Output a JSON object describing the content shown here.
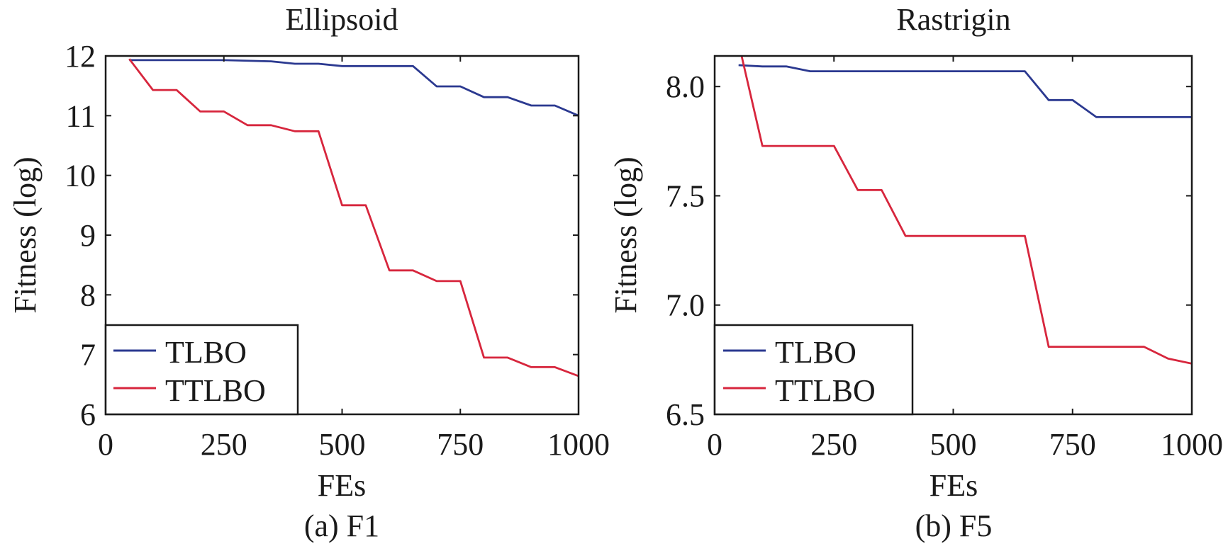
{
  "chart_data": [
    {
      "type": "line",
      "title": "Ellipsoid",
      "caption": "(a) F1",
      "xlabel": "FEs",
      "ylabel": "Fitness (log)",
      "xlim": [
        0,
        1000
      ],
      "ylim": [
        6,
        12
      ],
      "xticks": [
        0,
        250,
        500,
        750,
        1000
      ],
      "xtick_labels": [
        "0",
        "250",
        "500",
        "750",
        "1000"
      ],
      "yticks": [
        6,
        7,
        8,
        9,
        10,
        11,
        12
      ],
      "ytick_labels": [
        "6",
        "7",
        "8",
        "9",
        "10",
        "11",
        "12"
      ],
      "grid": false,
      "legend_position": "bottom-left",
      "series": [
        {
          "name": "TLBO",
          "color": "#2b3990",
          "x": [
            50,
            250,
            350,
            400,
            450,
            500,
            650,
            700,
            750,
            800,
            850,
            900,
            950,
            1000
          ],
          "y": [
            11.93,
            11.93,
            11.91,
            11.87,
            11.87,
            11.83,
            11.83,
            11.49,
            11.49,
            11.31,
            11.31,
            11.17,
            11.17,
            11.0
          ]
        },
        {
          "name": "TTLBO",
          "color": "#d7263d",
          "x": [
            50,
            100,
            150,
            200,
            250,
            300,
            350,
            400,
            450,
            500,
            550,
            600,
            650,
            700,
            750,
            800,
            850,
            900,
            950,
            1000
          ],
          "y": [
            11.95,
            11.43,
            11.43,
            11.07,
            11.07,
            10.84,
            10.84,
            10.74,
            10.74,
            9.5,
            9.5,
            8.41,
            8.41,
            8.23,
            8.23,
            6.95,
            6.95,
            6.79,
            6.79,
            6.64
          ]
        }
      ]
    },
    {
      "type": "line",
      "title": "Rastrigin",
      "caption": "(b) F5",
      "xlabel": "FEs",
      "ylabel": "Fitness (log)",
      "xlim": [
        0,
        1000
      ],
      "ylim": [
        6.5,
        8.14
      ],
      "xticks": [
        0,
        250,
        500,
        750,
        1000
      ],
      "xtick_labels": [
        "0",
        "250",
        "500",
        "750",
        "1000"
      ],
      "yticks": [
        6.5,
        7.0,
        7.5,
        8.0
      ],
      "ytick_labels": [
        "6.5",
        "7.0",
        "7.5",
        "8.0"
      ],
      "grid": false,
      "legend_position": "bottom-left",
      "series": [
        {
          "name": "TLBO",
          "color": "#2b3990",
          "x": [
            50,
            100,
            150,
            200,
            650,
            700,
            750,
            800,
            1000
          ],
          "y": [
            8.098,
            8.092,
            8.092,
            8.07,
            8.07,
            7.938,
            7.938,
            7.86,
            7.86
          ]
        },
        {
          "name": "TTLBO",
          "color": "#d7263d",
          "x": [
            50,
            100,
            250,
            300,
            350,
            400,
            650,
            700,
            900,
            950,
            1000
          ],
          "y": [
            8.2,
            7.728,
            7.728,
            7.526,
            7.526,
            7.316,
            7.316,
            6.809,
            6.809,
            6.755,
            6.732
          ]
        }
      ]
    }
  ]
}
